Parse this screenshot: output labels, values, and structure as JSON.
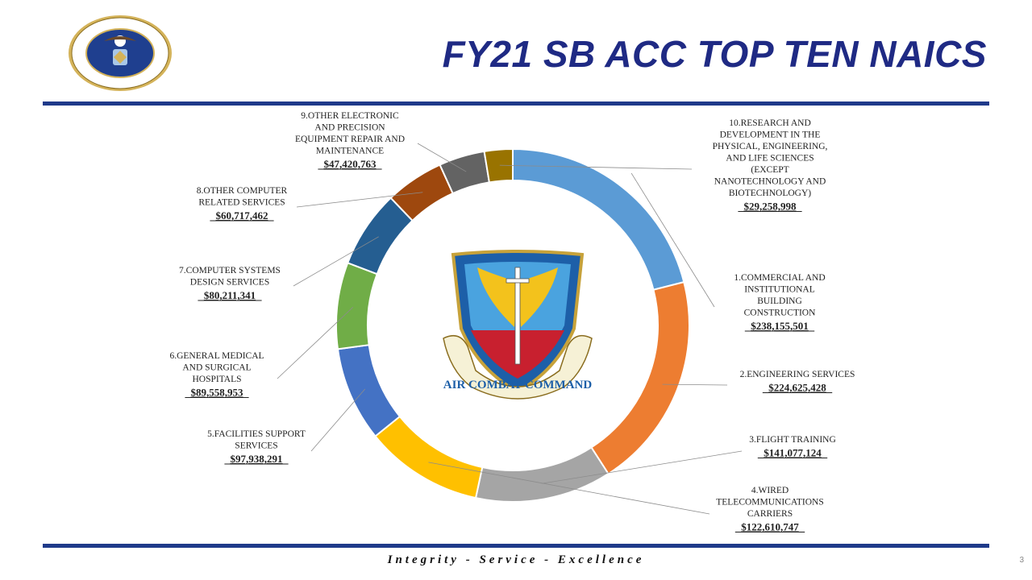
{
  "header": {
    "title": "FY21 SB ACC TOP TEN NAICS"
  },
  "footer": {
    "motto": "Integrity - Service - Excellence",
    "page": "3"
  },
  "logos": {
    "seal_text": "DEPARTMENT OF THE AIR FORCE · UNITED STATES OF AMERICA · MCMXLVII",
    "acc_text": "AIR COMBAT COMMAND"
  },
  "chart_data": {
    "type": "pie",
    "donut": true,
    "title": "",
    "colors": [
      "#5b9bd5",
      "#ed7d31",
      "#a5a5a5",
      "#ffc000",
      "#4472c4",
      "#70ad47",
      "#255e91",
      "#9e480e",
      "#636363",
      "#997300"
    ],
    "slices": [
      {
        "rank": "1",
        "label": [
          "1.COMMERCIAL AND",
          "INSTITUTIONAL",
          "BUILDING",
          "CONSTRUCTION"
        ],
        "value_text": "$238,155,501",
        "value": 238155501
      },
      {
        "rank": "2",
        "label": [
          "2.ENGINEERING SERVICES"
        ],
        "value_text": "$224,625,428",
        "value": 224625428
      },
      {
        "rank": "3",
        "label": [
          "3.FLIGHT TRAINING"
        ],
        "value_text": "$141,077,124",
        "value": 141077124
      },
      {
        "rank": "4",
        "label": [
          "4.WIRED",
          "TELECOMMUNICATIONS",
          "CARRIERS"
        ],
        "value_text": "$122,610,747",
        "value": 122610747
      },
      {
        "rank": "5",
        "label": [
          "5.FACILITIES SUPPORT",
          "SERVICES"
        ],
        "value_text": "$97,938,291",
        "value": 97938291
      },
      {
        "rank": "6",
        "label": [
          "6.GENERAL MEDICAL",
          "AND SURGICAL",
          "HOSPITALS"
        ],
        "value_text": "$89,558,953",
        "value": 89558953
      },
      {
        "rank": "7",
        "label": [
          "7.COMPUTER SYSTEMS",
          "DESIGN SERVICES"
        ],
        "value_text": "$80,211,341",
        "value": 80211341
      },
      {
        "rank": "8",
        "label": [
          "8.OTHER COMPUTER",
          "RELATED SERVICES"
        ],
        "value_text": "$60,717,462",
        "value": 60717462
      },
      {
        "rank": "9",
        "label": [
          "9.OTHER ELECTRONIC",
          "AND PRECISION",
          "EQUIPMENT REPAIR AND",
          "MAINTENANCE"
        ],
        "value_text": "$47,420,763",
        "value": 47420763
      },
      {
        "rank": "10",
        "label": [
          "10.RESEARCH AND",
          "DEVELOPMENT IN THE",
          "PHYSICAL, ENGINEERING,",
          "AND LIFE SCIENCES",
          "(EXCEPT",
          "NANOTECHNOLOGY AND",
          "BIOTECHNOLOGY)"
        ],
        "value_text": "$29,258,998",
        "value": 29258998
      }
    ]
  }
}
